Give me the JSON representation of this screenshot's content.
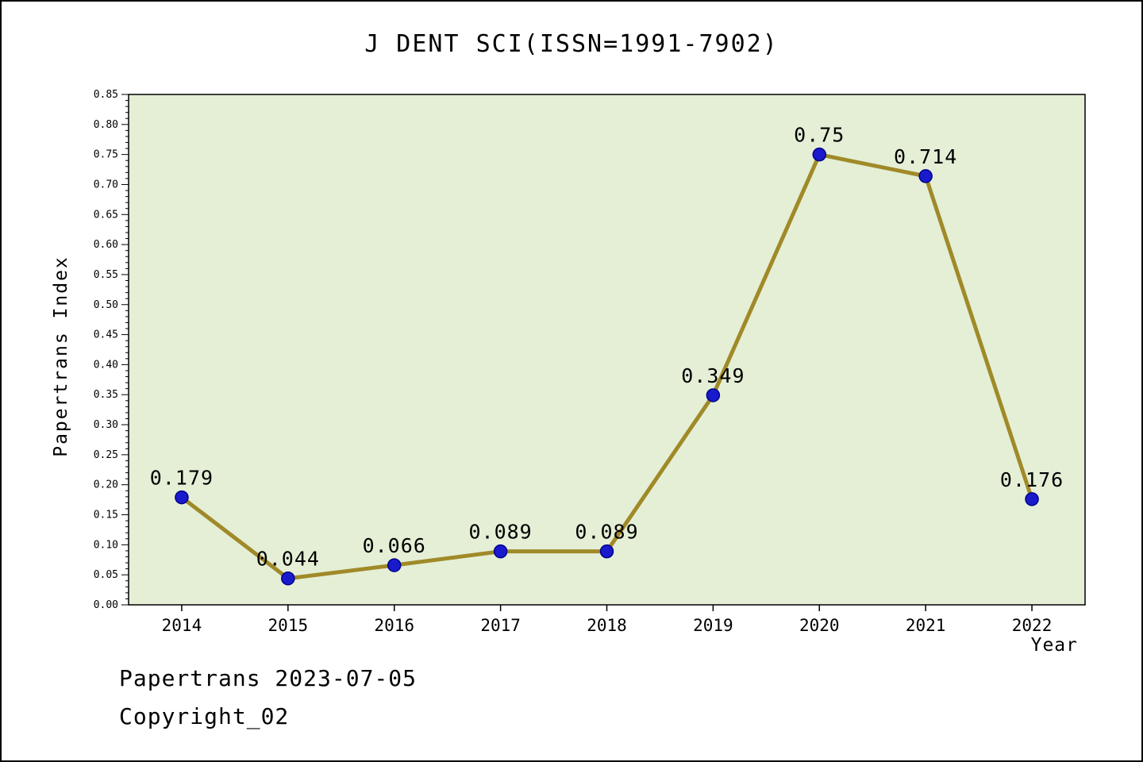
{
  "title": "J DENT SCI(ISSN=1991-7902)",
  "footer": {
    "line1": "Papertrans 2023-07-05",
    "line2": "Copyright_02"
  },
  "chart_data": {
    "type": "line",
    "title": "J DENT SCI(ISSN=1991-7902)",
    "xlabel": "Year",
    "ylabel": "Papertrans Index",
    "categories": [
      "2014",
      "2015",
      "2016",
      "2017",
      "2018",
      "2019",
      "2020",
      "2021",
      "2022"
    ],
    "values": [
      0.179,
      0.044,
      0.066,
      0.089,
      0.089,
      0.349,
      0.75,
      0.714,
      0.176
    ],
    "point_labels": [
      "0.179",
      "0.044",
      "0.066",
      "0.089",
      "0.089",
      "0.349",
      "0.75",
      "0.714",
      "0.176"
    ],
    "ylim": [
      0,
      0.85
    ],
    "ytick_step": 0.05,
    "ytick_minor_step": 0.01,
    "grid": false,
    "legend": "none",
    "colors": {
      "line": "#a08a28",
      "marker": "#1a1acd",
      "marker_edge": "#00008b",
      "plot_bg": "#e4efd6",
      "page_bg": "#ffffff",
      "text": "#000000"
    }
  }
}
